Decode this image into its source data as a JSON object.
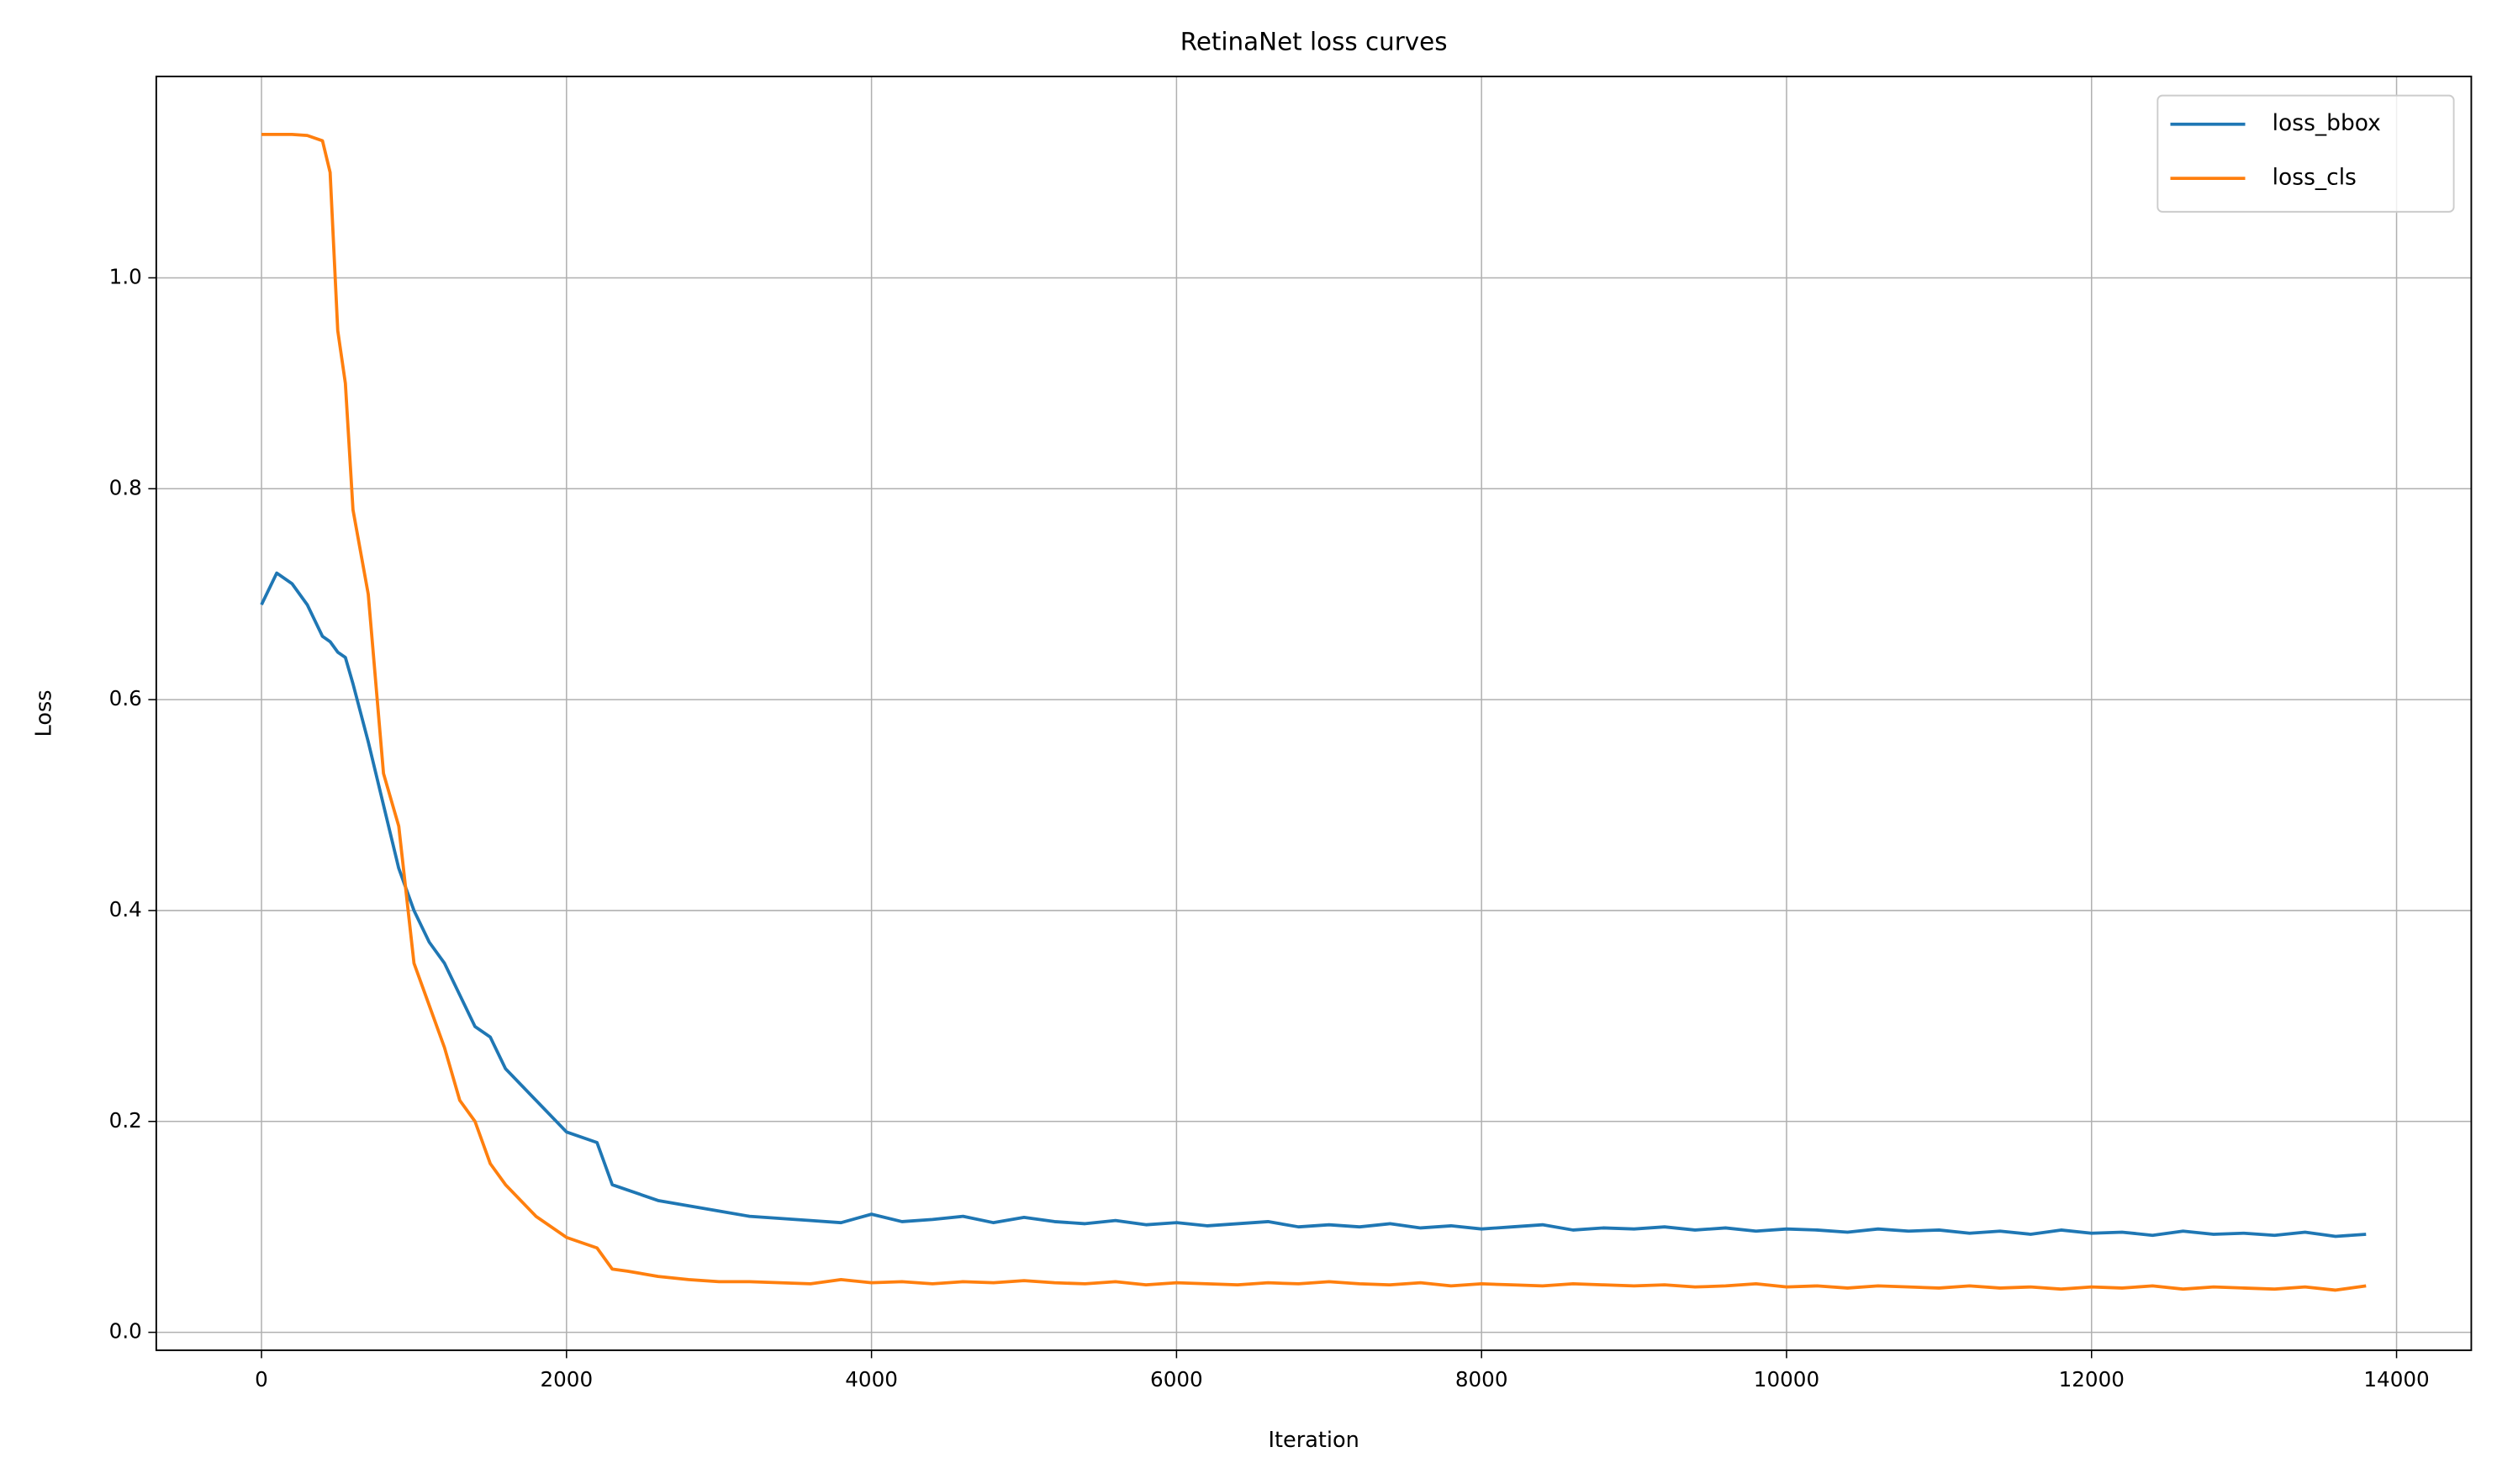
{
  "chart_data": {
    "type": "line",
    "title": "RetinaNet loss curves",
    "x_label": "Iteration",
    "y_label": "Loss",
    "x": [
      0,
      100,
      200,
      300,
      400,
      450,
      500,
      550,
      600,
      700,
      800,
      900,
      1000,
      1100,
      1200,
      1300,
      1400,
      1500,
      1600,
      1800,
      2000,
      2200,
      2300,
      2400,
      2600,
      2800,
      3000,
      3200,
      3400,
      3600,
      3800,
      4000,
      4200,
      4400,
      4600,
      4800,
      5000,
      5200,
      5400,
      5600,
      5800,
      6000,
      6200,
      6400,
      6600,
      6800,
      7000,
      7200,
      7400,
      7600,
      7800,
      8000,
      8200,
      8400,
      8600,
      8800,
      9000,
      9200,
      9400,
      9600,
      9800,
      10000,
      10200,
      10400,
      10600,
      10800,
      11000,
      11200,
      11400,
      11600,
      11800,
      12000,
      12200,
      12400,
      12600,
      12800,
      13000,
      13200,
      13400,
      13600,
      13800
    ],
    "series": [
      {
        "name": "loss_bbox",
        "color": "#1f77b4",
        "values": [
          0.69,
          0.72,
          0.71,
          0.69,
          0.66,
          0.655,
          0.645,
          0.64,
          0.615,
          0.56,
          0.5,
          0.44,
          0.4,
          0.37,
          0.35,
          0.32,
          0.29,
          0.28,
          0.25,
          0.22,
          0.19,
          0.18,
          0.14,
          0.135,
          0.125,
          0.12,
          0.115,
          0.11,
          0.108,
          0.106,
          0.104,
          0.112,
          0.105,
          0.107,
          0.11,
          0.104,
          0.109,
          0.105,
          0.103,
          0.106,
          0.102,
          0.104,
          0.101,
          0.103,
          0.105,
          0.1,
          0.102,
          0.1,
          0.103,
          0.099,
          0.101,
          0.098,
          0.1,
          0.102,
          0.097,
          0.099,
          0.098,
          0.1,
          0.097,
          0.099,
          0.096,
          0.098,
          0.097,
          0.095,
          0.098,
          0.096,
          0.097,
          0.094,
          0.096,
          0.093,
          0.097,
          0.094,
          0.095,
          0.092,
          0.096,
          0.093,
          0.094,
          0.092,
          0.095,
          0.091,
          0.093
        ]
      },
      {
        "name": "loss_cls",
        "color": "#ff7f0e",
        "values": [
          1.136,
          1.136,
          1.136,
          1.135,
          1.13,
          1.1,
          0.95,
          0.9,
          0.78,
          0.7,
          0.53,
          0.48,
          0.35,
          0.31,
          0.27,
          0.22,
          0.2,
          0.16,
          0.14,
          0.11,
          0.09,
          0.08,
          0.06,
          0.058,
          0.053,
          0.05,
          0.048,
          0.048,
          0.047,
          0.046,
          0.05,
          0.047,
          0.048,
          0.046,
          0.048,
          0.047,
          0.049,
          0.047,
          0.046,
          0.048,
          0.045,
          0.047,
          0.046,
          0.045,
          0.047,
          0.046,
          0.048,
          0.046,
          0.045,
          0.047,
          0.044,
          0.046,
          0.045,
          0.044,
          0.046,
          0.045,
          0.044,
          0.045,
          0.043,
          0.044,
          0.046,
          0.043,
          0.044,
          0.042,
          0.044,
          0.043,
          0.042,
          0.044,
          0.042,
          0.043,
          0.041,
          0.043,
          0.042,
          0.044,
          0.041,
          0.043,
          0.042,
          0.041,
          0.043,
          0.04,
          0.044
        ]
      }
    ],
    "xlim": [
      -690,
      14490
    ],
    "ylim": [
      -0.017,
      1.191
    ],
    "xticks": [
      0,
      2000,
      4000,
      6000,
      8000,
      10000,
      12000,
      14000
    ],
    "yticks": [
      {
        "value": 0,
        "label": "0.0"
      },
      0.2,
      0.4,
      0.6,
      0.8,
      {
        "value": 1,
        "label": "1.0"
      }
    ],
    "grid": true,
    "legend": "upper right"
  }
}
